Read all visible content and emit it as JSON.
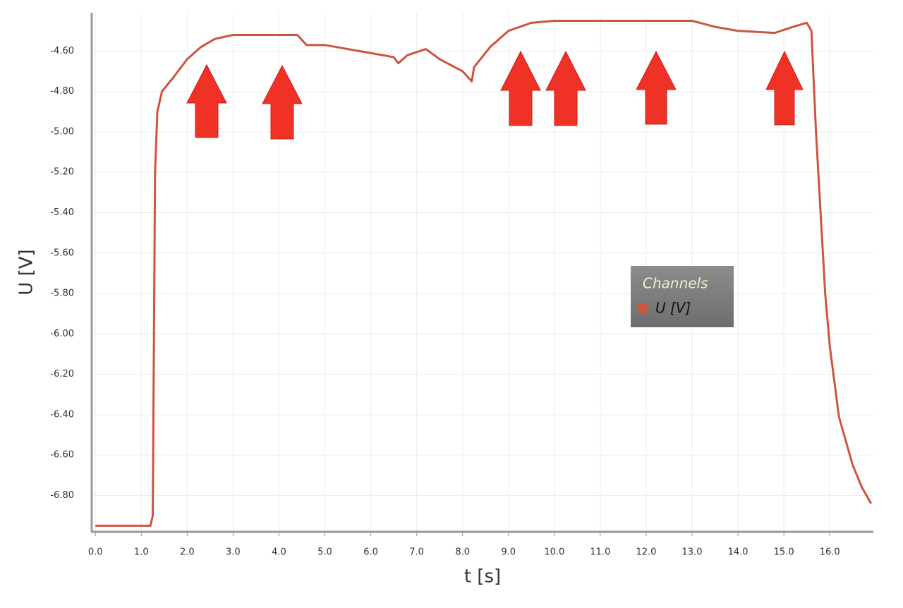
{
  "chart_data": {
    "type": "line",
    "x_label": "t [s]",
    "y_label": "U [V]",
    "legend_title": "Channels",
    "grid": true,
    "xlim": [
      -0.08,
      16.95
    ],
    "ylim": [
      -6.98,
      -4.41
    ],
    "xticks": [
      {
        "value": 0,
        "label": "0.0"
      },
      {
        "value": 1,
        "label": "1.0"
      },
      {
        "value": 2,
        "label": "2.0"
      },
      {
        "value": 3,
        "label": "3.0"
      },
      {
        "value": 4,
        "label": "4.0"
      },
      {
        "value": 5,
        "label": "5.0"
      },
      {
        "value": 6,
        "label": "6.0"
      },
      {
        "value": 7,
        "label": "7.0"
      },
      {
        "value": 8,
        "label": "8.0"
      },
      {
        "value": 9,
        "label": "9.0"
      },
      {
        "value": 10,
        "label": "10.0"
      },
      {
        "value": 11,
        "label": "11.0"
      },
      {
        "value": 12,
        "label": "12.0"
      },
      {
        "value": 13,
        "label": "13.0"
      },
      {
        "value": 14,
        "label": "14.0"
      },
      {
        "value": 15,
        "label": "15.0"
      },
      {
        "value": 16,
        "label": "16.0"
      }
    ],
    "yticks": [
      {
        "value": -4.6,
        "label": "-4.60"
      },
      {
        "value": -4.8,
        "label": "-4.80"
      },
      {
        "value": -5.0,
        "label": "-5.00"
      },
      {
        "value": -5.2,
        "label": "-5.20"
      },
      {
        "value": -5.4,
        "label": "-5.40"
      },
      {
        "value": -5.6,
        "label": "-5.60"
      },
      {
        "value": -5.8,
        "label": "-5.80"
      },
      {
        "value": -6.0,
        "label": "-6.00"
      },
      {
        "value": -6.2,
        "label": "-6.20"
      },
      {
        "value": -6.4,
        "label": "-6.40"
      },
      {
        "value": -6.6,
        "label": "-6.60"
      },
      {
        "value": -6.8,
        "label": "-6.80"
      }
    ],
    "x": [
      0,
      0.6,
      1.2,
      1.25,
      1.3,
      1.35,
      1.45,
      1.7,
      2.0,
      2.3,
      2.6,
      3.0,
      3.5,
      4.0,
      4.4,
      4.6,
      5.0,
      5.5,
      6.0,
      6.5,
      6.6,
      6.8,
      7.2,
      7.5,
      8.0,
      8.2,
      8.25,
      8.6,
      9.0,
      9.5,
      10.0,
      11.0,
      12.0,
      13.0,
      13.5,
      14.0,
      14.8,
      15.2,
      15.5,
      15.6,
      15.7,
      15.8,
      15.9,
      16.0,
      16.2,
      16.5,
      16.7,
      16.9
    ],
    "series": [
      {
        "name": "U [V]",
        "color": "#cc5540",
        "values": [
          -6.95,
          -6.95,
          -6.95,
          -6.9,
          -5.2,
          -4.9,
          -4.8,
          -4.73,
          -4.64,
          -4.58,
          -4.54,
          -4.52,
          -4.52,
          -4.52,
          -4.52,
          -4.57,
          -4.57,
          -4.59,
          -4.61,
          -4.63,
          -4.66,
          -4.62,
          -4.59,
          -4.64,
          -4.7,
          -4.75,
          -4.68,
          -4.58,
          -4.5,
          -4.46,
          -4.45,
          -4.45,
          -4.45,
          -4.45,
          -4.48,
          -4.5,
          -4.51,
          -4.48,
          -4.46,
          -4.5,
          -5.0,
          -5.4,
          -5.8,
          -6.06,
          -6.41,
          -6.65,
          -6.76,
          -6.84
        ]
      }
    ]
  }
}
